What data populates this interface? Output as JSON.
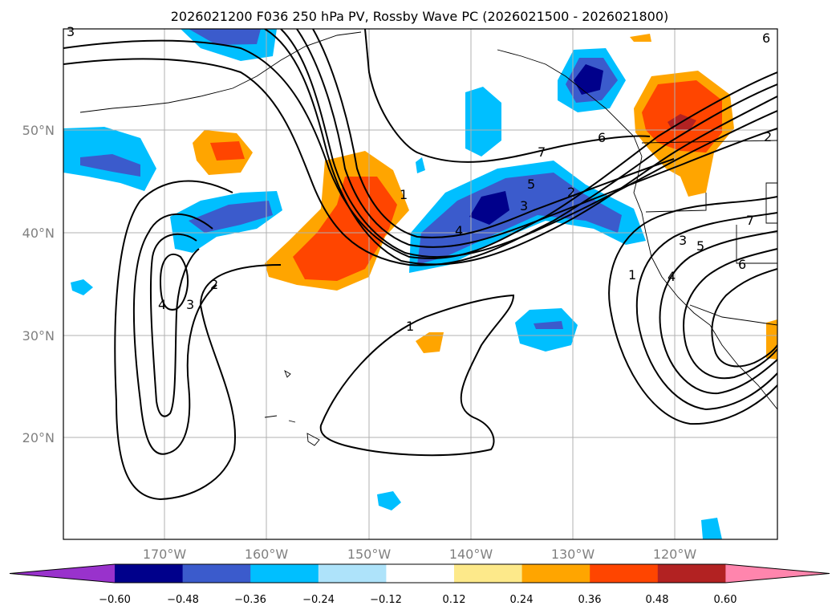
{
  "title": "2026021200 F036 250 hPa PV, Rossby Wave PC (2026021500 - 2026021800)",
  "map": {
    "extent": {
      "lon_min": -180,
      "lon_max": -110,
      "lat_min": 10,
      "lat_max": 60
    },
    "lat_labels": [
      "50°N",
      "40°N",
      "30°N",
      "20°N"
    ],
    "lon_labels": [
      "170°W",
      "160°W",
      "150°W",
      "140°W",
      "130°W",
      "120°W"
    ],
    "contour_labels": [
      "1",
      "1",
      "1",
      "2",
      "2",
      "3",
      "4",
      "5",
      "7",
      "6",
      "1",
      "3",
      "4",
      "5",
      "2",
      "3",
      "4",
      "6",
      "7",
      "6",
      "2",
      "3"
    ]
  },
  "colorbar": {
    "ticks": [
      "−0.60",
      "−0.48",
      "−0.36",
      "−0.24",
      "−0.12",
      "0.12",
      "0.24",
      "0.36",
      "0.48",
      "0.60"
    ],
    "colors": [
      "#9932cc",
      "#00008b",
      "#3b5bcc",
      "#00bfff",
      "#aee3fa",
      "#ffffff",
      "#fde98a",
      "#ffa500",
      "#ff4500",
      "#b22222",
      "#ff85ad"
    ]
  }
}
